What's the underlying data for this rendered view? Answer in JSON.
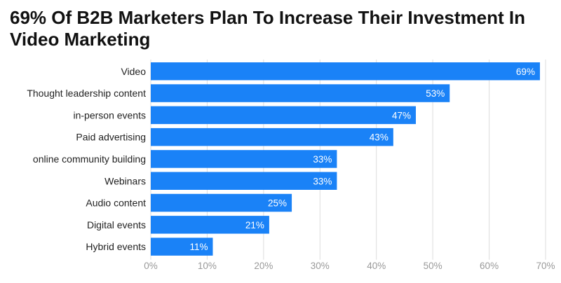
{
  "title": "69% Of B2B Marketers Plan To Increase Their Investment In Video Marketing",
  "colors": {
    "bar": "#1a82f7",
    "grid": "#dddddd",
    "tick_text": "#999999"
  },
  "chart_data": {
    "type": "bar",
    "orientation": "horizontal",
    "title": "69% Of B2B Marketers Plan To Increase Their Investment In Video Marketing",
    "categories": [
      "Video",
      "Thought leadership content",
      "in-person events",
      "Paid advertising",
      "online community building",
      "Webinars",
      "Audio content",
      "Digital events",
      "Hybrid events"
    ],
    "values": [
      69,
      53,
      47,
      43,
      33,
      33,
      25,
      21,
      11
    ],
    "value_labels": [
      "69%",
      "53%",
      "47%",
      "43%",
      "33%",
      "33%",
      "25%",
      "21%",
      "11%"
    ],
    "xlim": [
      0,
      70
    ],
    "x_ticks": [
      0,
      10,
      20,
      30,
      40,
      50,
      60,
      70
    ],
    "x_tick_labels": [
      "0%",
      "10%",
      "20%",
      "30%",
      "40%",
      "50%",
      "60%",
      "70%"
    ],
    "grid": true,
    "legend": false
  }
}
